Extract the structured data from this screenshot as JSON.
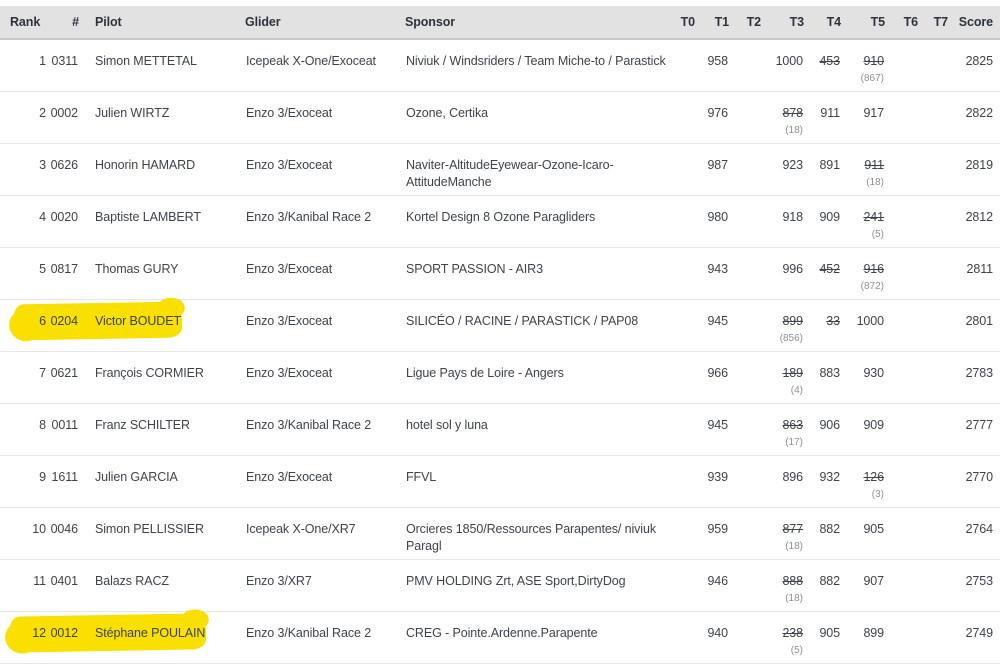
{
  "annotations": {
    "marker_color": "#f9e000"
  },
  "table": {
    "columns": [
      {
        "key": "rank",
        "label": "Rank"
      },
      {
        "key": "num",
        "label": "#"
      },
      {
        "key": "pilot",
        "label": "Pilot"
      },
      {
        "key": "glider",
        "label": "Glider"
      },
      {
        "key": "sponsor",
        "label": "Sponsor"
      },
      {
        "key": "t0",
        "label": "T0"
      },
      {
        "key": "t1",
        "label": "T1"
      },
      {
        "key": "t2",
        "label": "T2"
      },
      {
        "key": "t3",
        "label": "T3"
      },
      {
        "key": "t4",
        "label": "T4"
      },
      {
        "key": "t5",
        "label": "T5"
      },
      {
        "key": "t6",
        "label": "T6"
      },
      {
        "key": "t7",
        "label": "T7"
      },
      {
        "key": "score",
        "label": "Score"
      }
    ],
    "rows": [
      {
        "rank": "1",
        "num": "0311",
        "pilot": "Simon METTETAL",
        "glider": "Icepeak X-One/Exoceat",
        "sponsor": "Niviuk / Windsriders / Team Miche-to / Parastick",
        "tasks": {
          "t0": null,
          "t1": {
            "v": "958"
          },
          "t2": null,
          "t3": {
            "v": "1000"
          },
          "t4": {
            "v": "453",
            "strike": true
          },
          "t5": {
            "v": "910",
            "strike": true,
            "sub": "(867)"
          },
          "t6": null,
          "t7": null
        },
        "score": "2825",
        "highlighted": false
      },
      {
        "rank": "2",
        "num": "0002",
        "pilot": "Julien WIRTZ",
        "glider": "Enzo 3/Exoceat",
        "sponsor": "Ozone, Certika",
        "tasks": {
          "t0": null,
          "t1": {
            "v": "976"
          },
          "t2": null,
          "t3": {
            "v": "878",
            "strike": true,
            "sub": "(18)"
          },
          "t4": {
            "v": "911"
          },
          "t5": {
            "v": "917"
          },
          "t6": null,
          "t7": null
        },
        "score": "2822",
        "highlighted": false
      },
      {
        "rank": "3",
        "num": "0626",
        "pilot": "Honorin HAMARD",
        "glider": "Enzo 3/Exoceat",
        "sponsor": "Naviter-AltitudeEyewear-Ozone-Icaro-\nAttitudeManche",
        "tasks": {
          "t0": null,
          "t1": {
            "v": "987"
          },
          "t2": null,
          "t3": {
            "v": "923"
          },
          "t4": {
            "v": "891"
          },
          "t5": {
            "v": "911",
            "strike": true,
            "sub": "(18)"
          },
          "t6": null,
          "t7": null
        },
        "score": "2819",
        "highlighted": false
      },
      {
        "rank": "4",
        "num": "0020",
        "pilot": "Baptiste LAMBERT",
        "glider": "Enzo 3/Kanibal Race 2",
        "sponsor": "Kortel Design 8 Ozone Paragliders",
        "tasks": {
          "t0": null,
          "t1": {
            "v": "980"
          },
          "t2": null,
          "t3": {
            "v": "918"
          },
          "t4": {
            "v": "909"
          },
          "t5": {
            "v": "241",
            "strike": true,
            "sub": "(5)"
          },
          "t6": null,
          "t7": null
        },
        "score": "2812",
        "highlighted": false
      },
      {
        "rank": "5",
        "num": "0817",
        "pilot": "Thomas GURY",
        "glider": "Enzo 3/Exoceat",
        "sponsor": "SPORT PASSION - AIR3",
        "tasks": {
          "t0": null,
          "t1": {
            "v": "943"
          },
          "t2": null,
          "t3": {
            "v": "996"
          },
          "t4": {
            "v": "452",
            "strike": true
          },
          "t5": {
            "v": "916",
            "strike": true,
            "sub": "(872)"
          },
          "t6": null,
          "t7": null
        },
        "score": "2811",
        "highlighted": false
      },
      {
        "rank": "6",
        "num": "0204",
        "pilot": "Victor BOUDET",
        "glider": "Enzo 3/Exoceat",
        "sponsor": "SILICÉO / RACINE / PARASTICK / PAP08",
        "tasks": {
          "t0": null,
          "t1": {
            "v": "945"
          },
          "t2": null,
          "t3": {
            "v": "899",
            "strike": true,
            "sub": "(856)"
          },
          "t4": {
            "v": "33",
            "strike": true
          },
          "t5": {
            "v": "1000"
          },
          "t6": null,
          "t7": null
        },
        "score": "2801",
        "highlighted": true,
        "marker_left_px": 14,
        "marker_width_px": 168
      },
      {
        "rank": "7",
        "num": "0621",
        "pilot": "François CORMIER",
        "glider": "Enzo 3/Exoceat",
        "sponsor": "Ligue Pays de Loire - Angers",
        "tasks": {
          "t0": null,
          "t1": {
            "v": "966"
          },
          "t2": null,
          "t3": {
            "v": "189",
            "strike": true,
            "sub": "(4)"
          },
          "t4": {
            "v": "883"
          },
          "t5": {
            "v": "930"
          },
          "t6": null,
          "t7": null
        },
        "score": "2783",
        "highlighted": false
      },
      {
        "rank": "8",
        "num": "0011",
        "pilot": "Franz SCHILTER",
        "glider": "Enzo 3/Kanibal Race 2",
        "sponsor": "hotel sol y luna",
        "tasks": {
          "t0": null,
          "t1": {
            "v": "945"
          },
          "t2": null,
          "t3": {
            "v": "863",
            "strike": true,
            "sub": "(17)"
          },
          "t4": {
            "v": "906"
          },
          "t5": {
            "v": "909"
          },
          "t6": null,
          "t7": null
        },
        "score": "2777",
        "highlighted": false
      },
      {
        "rank": "9",
        "num": "1611",
        "pilot": "Julien GARCIA",
        "glider": "Enzo 3/Exoceat",
        "sponsor": "FFVL",
        "tasks": {
          "t0": null,
          "t1": {
            "v": "939"
          },
          "t2": null,
          "t3": {
            "v": "896"
          },
          "t4": {
            "v": "932"
          },
          "t5": {
            "v": "126",
            "strike": true,
            "sub": "(3)"
          },
          "t6": null,
          "t7": null
        },
        "score": "2770",
        "highlighted": false
      },
      {
        "rank": "10",
        "num": "0046",
        "pilot": "Simon PELLISSIER",
        "glider": "Icepeak X-One/XR7",
        "sponsor": "Orcieres 1850/Ressources Parapentes/ niviuk\nParagl",
        "tasks": {
          "t0": null,
          "t1": {
            "v": "959"
          },
          "t2": null,
          "t3": {
            "v": "877",
            "strike": true,
            "sub": "(18)"
          },
          "t4": {
            "v": "882"
          },
          "t5": {
            "v": "905"
          },
          "t6": null,
          "t7": null
        },
        "score": "2764",
        "highlighted": false
      },
      {
        "rank": "11",
        "num": "0401",
        "pilot": "Balazs RACZ",
        "glider": "Enzo 3/XR7",
        "sponsor": "PMV HOLDING Zrt, ASE Sport,DirtyDog",
        "tasks": {
          "t0": null,
          "t1": {
            "v": "946"
          },
          "t2": null,
          "t3": {
            "v": "888",
            "strike": true,
            "sub": "(18)"
          },
          "t4": {
            "v": "882"
          },
          "t5": {
            "v": "907"
          },
          "t6": null,
          "t7": null
        },
        "score": "2753",
        "highlighted": false
      },
      {
        "rank": "12",
        "num": "0012",
        "pilot": "Stéphane POULAIN",
        "glider": "Enzo 3/Kanibal Race 2",
        "sponsor": "CREG - Pointe.Ardenne.Parapente",
        "tasks": {
          "t0": null,
          "t1": {
            "v": "940"
          },
          "t2": null,
          "t3": {
            "v": "238",
            "strike": true,
            "sub": "(5)"
          },
          "t4": {
            "v": "905"
          },
          "t5": {
            "v": "899"
          },
          "t6": null,
          "t7": null
        },
        "score": "2749",
        "highlighted": true,
        "marker_left_px": 10,
        "marker_width_px": 196
      }
    ]
  }
}
